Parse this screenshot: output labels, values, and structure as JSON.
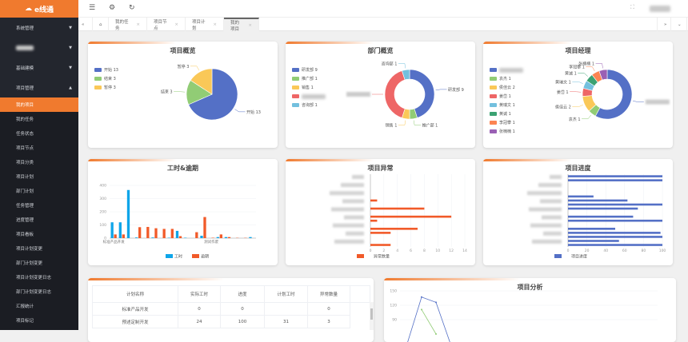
{
  "app": {
    "logo_text": "e线通"
  },
  "sidebar": {
    "items": [
      {
        "label": "系统管理",
        "level": "top",
        "caret": "▼"
      },
      {
        "label": "",
        "level": "top",
        "caret": "▼",
        "blurred": true
      },
      {
        "label": "基础建模",
        "level": "top",
        "caret": "▼"
      },
      {
        "label": "项目管理",
        "level": "top",
        "caret": "▲"
      },
      {
        "label": "我的项目",
        "level": "sub",
        "active": true
      },
      {
        "label": "我的任务",
        "level": "sub"
      },
      {
        "label": "任务状态",
        "level": "sub"
      },
      {
        "label": "项目节点",
        "level": "sub"
      },
      {
        "label": "项目分类",
        "level": "sub"
      },
      {
        "label": "项目计划",
        "level": "sub"
      },
      {
        "label": "部门计划",
        "level": "sub"
      },
      {
        "label": "任务管理",
        "level": "sub"
      },
      {
        "label": "进度管理",
        "level": "sub"
      },
      {
        "label": "项目看板",
        "level": "sub"
      },
      {
        "label": "项目计划变更",
        "level": "sub"
      },
      {
        "label": "部门计划变更",
        "level": "sub"
      },
      {
        "label": "项目计划变更日志",
        "level": "sub"
      },
      {
        "label": "部门计划变更日志",
        "level": "sub"
      },
      {
        "label": "汇报统计",
        "level": "sub"
      },
      {
        "label": "项目标记",
        "level": "sub"
      }
    ]
  },
  "topbar": {
    "menu_icon": "☰",
    "settings_icon": "⚙",
    "refresh_icon": "↻",
    "fullscreen_icon": "⛶"
  },
  "tabs": {
    "prev": "«",
    "next": "»",
    "more": "⌄",
    "home_icon": "⌂",
    "close": "×",
    "items": [
      {
        "label": "我的任务"
      },
      {
        "label": "项目节点"
      },
      {
        "label": "项目计划"
      },
      {
        "label": "我的项目",
        "active": true
      }
    ]
  },
  "colors": {
    "accent": "#f07a2e",
    "blue": "#5470c6",
    "green": "#91cc75",
    "yellow": "#fac858",
    "red": "#ee6666",
    "cyan": "#73c0de",
    "teal": "#3ba272",
    "orange": "#fc8452",
    "purple": "#9a60b4",
    "bar_blue": "#0ea5e9",
    "bar_orange": "#f15a29"
  },
  "chart_data": [
    {
      "id": "overview",
      "type": "pie",
      "title": "项目概览",
      "slices": [
        {
          "name": "开始",
          "value": 13,
          "color": "#5470c6"
        },
        {
          "name": "结束",
          "value": 3,
          "color": "#91cc75"
        },
        {
          "name": "暂停",
          "value": 3,
          "color": "#fac858"
        }
      ]
    },
    {
      "id": "dept",
      "type": "pie",
      "donut": true,
      "title": "部门概览",
      "slices": [
        {
          "name": "研发部",
          "value": 9,
          "color": "#5470c6"
        },
        {
          "name": "推广部",
          "value": 1,
          "color": "#91cc75"
        },
        {
          "name": "销售",
          "value": 1,
          "color": "#fac858"
        },
        {
          "name": "",
          "value": 8,
          "color": "#ee6666",
          "blurred": true
        },
        {
          "name": "咨询部",
          "value": 1,
          "color": "#73c0de"
        }
      ]
    },
    {
      "id": "manager",
      "type": "pie",
      "donut": true,
      "title": "项目经理",
      "slices": [
        {
          "name": "",
          "value": 11,
          "color": "#5470c6",
          "blurred": true
        },
        {
          "name": "袁杰",
          "value": 1,
          "color": "#91cc75"
        },
        {
          "name": "侯佳云",
          "value": 2,
          "color": "#fac858"
        },
        {
          "name": "姜岱",
          "value": 1,
          "color": "#ee6666"
        },
        {
          "name": "黄瑞文",
          "value": 1,
          "color": "#73c0de"
        },
        {
          "name": "黄诚",
          "value": 1,
          "color": "#3ba272"
        },
        {
          "name": "李冠攀",
          "value": 1,
          "color": "#fc8452"
        },
        {
          "name": "张楠楠",
          "value": 1,
          "color": "#9a60b4"
        }
      ]
    },
    {
      "id": "hours",
      "type": "bar",
      "title": "工时&逾期",
      "ylim": [
        0,
        400
      ],
      "yticks": [
        0,
        100,
        200,
        300,
        400
      ],
      "grid": true,
      "legend": "bottom",
      "categories": [
        "标准产品开发",
        "",
        "",
        "",
        "",
        "",
        "",
        "",
        "",
        "",
        "",
        "",
        "测试作废",
        "",
        "",
        "",
        "",
        ""
      ],
      "series": [
        {
          "name": "工时",
          "color": "#0ea5e9",
          "values": [
            120,
            120,
            365,
            5,
            0,
            5,
            0,
            3,
            55,
            3,
            0,
            18,
            0,
            8,
            8,
            0,
            0,
            8
          ]
        },
        {
          "name": "逾期",
          "color": "#f15a29",
          "values": [
            28,
            28,
            0,
            83,
            85,
            75,
            70,
            70,
            15,
            0,
            45,
            160,
            3,
            28,
            8,
            2,
            2,
            0
          ]
        }
      ]
    },
    {
      "id": "anomaly",
      "type": "bar",
      "orientation": "horizontal",
      "title": "项目异常",
      "xlim": [
        0,
        14
      ],
      "xticks": [
        0,
        2,
        4,
        6,
        8,
        10,
        12,
        14
      ],
      "grid": true,
      "legend": "bottom",
      "series": [
        {
          "name": "异常数量",
          "color": "#f15a29",
          "values": [
            0,
            0,
            0,
            0,
            0,
            0,
            1,
            0,
            8,
            0,
            12,
            1,
            0,
            7,
            3,
            0,
            0,
            3
          ]
        }
      ]
    },
    {
      "id": "progress",
      "type": "bar",
      "orientation": "horizontal",
      "title": "项目进度",
      "xlim": [
        0,
        100
      ],
      "xticks": [
        0,
        20,
        40,
        60,
        80,
        100
      ],
      "grid": true,
      "legend": "bottom",
      "series": [
        {
          "name": "项目进度",
          "color": "#5470c6",
          "values": [
            100,
            100,
            0,
            0,
            0,
            27,
            63,
            100,
            74,
            0,
            69,
            100,
            0,
            50,
            98,
            100,
            54,
            100
          ]
        }
      ]
    },
    {
      "id": "analysis",
      "type": "line",
      "title": "项目分析",
      "yticks": [
        90,
        120,
        150
      ],
      "grid": true,
      "series": [
        {
          "color": "#5470c6",
          "values": [
            40,
            137,
            126,
            40
          ]
        },
        {
          "color": "#91cc75",
          "values": [
            null,
            111,
            60
          ]
        }
      ]
    }
  ],
  "table": {
    "headers": [
      "计划名称",
      "实际工时",
      "进度",
      "计划工时",
      "异常数量"
    ],
    "rows": [
      [
        "标准产品开发",
        "0",
        "0",
        "",
        "0"
      ],
      [
        "预述定制开发",
        "24",
        "100",
        "31",
        "3"
      ]
    ]
  }
}
